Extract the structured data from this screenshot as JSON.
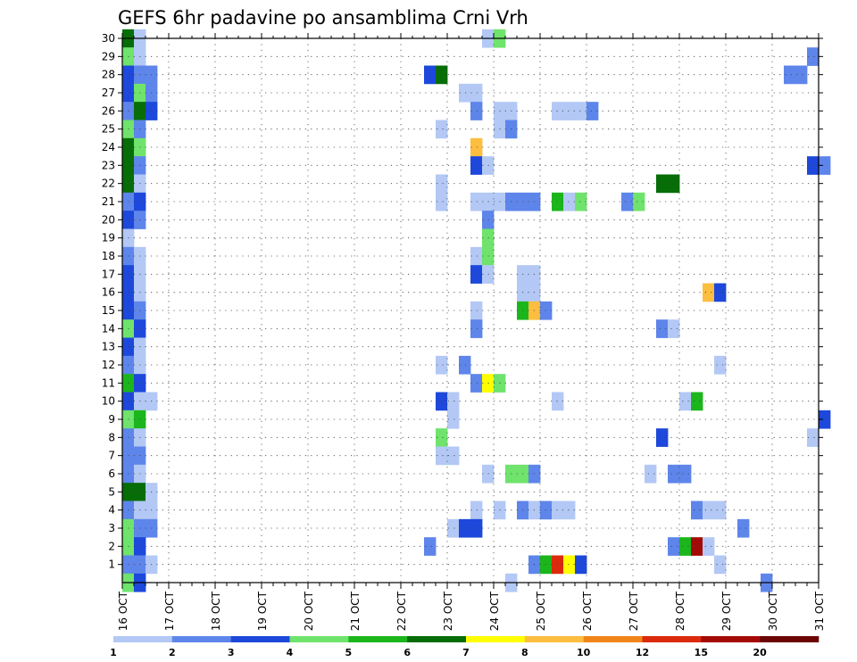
{
  "chart_data": {
    "type": "heatmap",
    "title": "GEFS 6hr padavine po ansamblima Crni Vrh",
    "x_tick_labels": [
      "16 OCT",
      "17 OCT",
      "18 OCT",
      "19 OCT",
      "20 OCT",
      "21 OCT",
      "22 OCT",
      "23 OCT",
      "24 OCT",
      "25 OCT",
      "26 OCT",
      "27 OCT",
      "28 OCT",
      "29 OCT",
      "30 OCT",
      "31 OCT"
    ],
    "y_tick_labels": [
      "1",
      "2",
      "3",
      "4",
      "5",
      "6",
      "7",
      "8",
      "9",
      "10",
      "11",
      "12",
      "13",
      "14",
      "15",
      "16",
      "17",
      "18",
      "19",
      "20",
      "21",
      "22",
      "23",
      "24",
      "25",
      "26",
      "27",
      "28",
      "29",
      "30"
    ],
    "x_range": [
      "16 OCT",
      "31 OCT"
    ],
    "y_range": [
      0,
      30
    ],
    "step_hours": 6,
    "grid": "dotted",
    "colorbar": {
      "placement": "bottom",
      "labels": [
        "1",
        "2",
        "3",
        "4",
        "5",
        "6",
        "7",
        "8",
        "10",
        "12",
        "15",
        "20"
      ],
      "colors": [
        "#b3c8f5",
        "#5e85ea",
        "#1d48db",
        "#6fe36c",
        "#1bb61c",
        "#076d07",
        "#ffff00",
        "#fdbd3e",
        "#f08619",
        "#dc2a0d",
        "#a40a05",
        "#6b0505"
      ]
    },
    "cells": [
      {
        "member": 30,
        "x": 0,
        "w": 1,
        "c": 5
      },
      {
        "member": 30,
        "x": 1,
        "w": 1,
        "c": 0
      },
      {
        "member": 30,
        "x": 31,
        "w": 1,
        "c": 0
      },
      {
        "member": 30,
        "x": 32,
        "w": 1,
        "c": 3
      },
      {
        "member": 29,
        "x": 0,
        "w": 1,
        "c": 3
      },
      {
        "member": 29,
        "x": 1,
        "w": 1,
        "c": 0
      },
      {
        "member": 29,
        "x": 59,
        "w": 1,
        "c": 1
      },
      {
        "member": 28,
        "x": 0,
        "w": 1,
        "c": 2
      },
      {
        "member": 28,
        "x": 1,
        "w": 2,
        "c": 1
      },
      {
        "member": 28,
        "x": 26,
        "w": 1,
        "c": 2
      },
      {
        "member": 28,
        "x": 27,
        "w": 1,
        "c": 5
      },
      {
        "member": 28,
        "x": 57,
        "w": 2,
        "c": 1
      },
      {
        "member": 27,
        "x": 0,
        "w": 1,
        "c": 2
      },
      {
        "member": 27,
        "x": 1,
        "w": 1,
        "c": 3
      },
      {
        "member": 27,
        "x": 2,
        "w": 1,
        "c": 1
      },
      {
        "member": 27,
        "x": 29,
        "w": 2,
        "c": 0
      },
      {
        "member": 26,
        "x": 0,
        "w": 1,
        "c": 1
      },
      {
        "member": 26,
        "x": 1,
        "w": 1,
        "c": 5
      },
      {
        "member": 26,
        "x": 2,
        "w": 1,
        "c": 2
      },
      {
        "member": 26,
        "x": 30,
        "w": 1,
        "c": 1
      },
      {
        "member": 26,
        "x": 32,
        "w": 2,
        "c": 0
      },
      {
        "member": 26,
        "x": 37,
        "w": 3,
        "c": 0
      },
      {
        "member": 26,
        "x": 40,
        "w": 1,
        "c": 1
      },
      {
        "member": 25,
        "x": 0,
        "w": 1,
        "c": 3
      },
      {
        "member": 25,
        "x": 1,
        "w": 1,
        "c": 1
      },
      {
        "member": 25,
        "x": 27,
        "w": 1,
        "c": 0
      },
      {
        "member": 25,
        "x": 32,
        "w": 1,
        "c": 0
      },
      {
        "member": 25,
        "x": 33,
        "w": 1,
        "c": 1
      },
      {
        "member": 24,
        "x": 0,
        "w": 1,
        "c": 5
      },
      {
        "member": 24,
        "x": 1,
        "w": 1,
        "c": 3
      },
      {
        "member": 24,
        "x": 30,
        "w": 1,
        "c": 7
      },
      {
        "member": 23,
        "x": 0,
        "w": 1,
        "c": 5
      },
      {
        "member": 23,
        "x": 1,
        "w": 1,
        "c": 1
      },
      {
        "member": 23,
        "x": 30,
        "w": 1,
        "c": 2
      },
      {
        "member": 23,
        "x": 31,
        "w": 1,
        "c": 0
      },
      {
        "member": 23,
        "x": 59,
        "w": 1,
        "c": 2
      },
      {
        "member": 23,
        "x": 60,
        "w": 1,
        "c": 1
      },
      {
        "member": 22,
        "x": 0,
        "w": 1,
        "c": 5
      },
      {
        "member": 22,
        "x": 1,
        "w": 1,
        "c": 0
      },
      {
        "member": 22,
        "x": 27,
        "w": 1,
        "c": 0
      },
      {
        "member": 22,
        "x": 46,
        "w": 2,
        "c": 5
      },
      {
        "member": 21,
        "x": 0,
        "w": 1,
        "c": 1
      },
      {
        "member": 21,
        "x": 1,
        "w": 1,
        "c": 2
      },
      {
        "member": 21,
        "x": 27,
        "w": 1,
        "c": 0
      },
      {
        "member": 21,
        "x": 30,
        "w": 3,
        "c": 0
      },
      {
        "member": 21,
        "x": 33,
        "w": 3,
        "c": 1
      },
      {
        "member": 21,
        "x": 37,
        "w": 1,
        "c": 4
      },
      {
        "member": 21,
        "x": 38,
        "w": 1,
        "c": 0
      },
      {
        "member": 21,
        "x": 39,
        "w": 1,
        "c": 3
      },
      {
        "member": 21,
        "x": 43,
        "w": 1,
        "c": 1
      },
      {
        "member": 21,
        "x": 44,
        "w": 1,
        "c": 3
      },
      {
        "member": 20,
        "x": 0,
        "w": 1,
        "c": 2
      },
      {
        "member": 20,
        "x": 1,
        "w": 1,
        "c": 1
      },
      {
        "member": 20,
        "x": 31,
        "w": 1,
        "c": 1
      },
      {
        "member": 19,
        "x": 0,
        "w": 1,
        "c": 0
      },
      {
        "member": 19,
        "x": 31,
        "w": 1,
        "c": 3
      },
      {
        "member": 18,
        "x": 0,
        "w": 1,
        "c": 1
      },
      {
        "member": 18,
        "x": 1,
        "w": 1,
        "c": 0
      },
      {
        "member": 18,
        "x": 30,
        "w": 1,
        "c": 0
      },
      {
        "member": 18,
        "x": 31,
        "w": 1,
        "c": 3
      },
      {
        "member": 17,
        "x": 0,
        "w": 1,
        "c": 2
      },
      {
        "member": 17,
        "x": 1,
        "w": 1,
        "c": 0
      },
      {
        "member": 17,
        "x": 30,
        "w": 1,
        "c": 2
      },
      {
        "member": 17,
        "x": 31,
        "w": 1,
        "c": 0
      },
      {
        "member": 17,
        "x": 34,
        "w": 2,
        "c": 0
      },
      {
        "member": 16,
        "x": 0,
        "w": 1,
        "c": 2
      },
      {
        "member": 16,
        "x": 1,
        "w": 1,
        "c": 0
      },
      {
        "member": 16,
        "x": 34,
        "w": 2,
        "c": 0
      },
      {
        "member": 16,
        "x": 50,
        "w": 1,
        "c": 7
      },
      {
        "member": 16,
        "x": 51,
        "w": 1,
        "c": 2
      },
      {
        "member": 15,
        "x": 0,
        "w": 1,
        "c": 2
      },
      {
        "member": 15,
        "x": 1,
        "w": 1,
        "c": 1
      },
      {
        "member": 15,
        "x": 30,
        "w": 1,
        "c": 0
      },
      {
        "member": 15,
        "x": 34,
        "w": 1,
        "c": 4
      },
      {
        "member": 15,
        "x": 35,
        "w": 1,
        "c": 7
      },
      {
        "member": 15,
        "x": 36,
        "w": 1,
        "c": 1
      },
      {
        "member": 14,
        "x": 0,
        "w": 1,
        "c": 3
      },
      {
        "member": 14,
        "x": 1,
        "w": 1,
        "c": 2
      },
      {
        "member": 14,
        "x": 30,
        "w": 1,
        "c": 1
      },
      {
        "member": 14,
        "x": 46,
        "w": 1,
        "c": 1
      },
      {
        "member": 14,
        "x": 47,
        "w": 1,
        "c": 0
      },
      {
        "member": 13,
        "x": 0,
        "w": 1,
        "c": 2
      },
      {
        "member": 13,
        "x": 1,
        "w": 1,
        "c": 0
      },
      {
        "member": 12,
        "x": 0,
        "w": 1,
        "c": 1
      },
      {
        "member": 12,
        "x": 1,
        "w": 1,
        "c": 0
      },
      {
        "member": 12,
        "x": 27,
        "w": 1,
        "c": 0
      },
      {
        "member": 12,
        "x": 29,
        "w": 1,
        "c": 1
      },
      {
        "member": 12,
        "x": 51,
        "w": 1,
        "c": 0
      },
      {
        "member": 11,
        "x": 0,
        "w": 1,
        "c": 4
      },
      {
        "member": 11,
        "x": 1,
        "w": 1,
        "c": 2
      },
      {
        "member": 11,
        "x": 30,
        "w": 1,
        "c": 1
      },
      {
        "member": 11,
        "x": 31,
        "w": 1,
        "c": 6
      },
      {
        "member": 11,
        "x": 32,
        "w": 1,
        "c": 3
      },
      {
        "member": 10,
        "x": 0,
        "w": 1,
        "c": 2
      },
      {
        "member": 10,
        "x": 1,
        "w": 2,
        "c": 0
      },
      {
        "member": 10,
        "x": 27,
        "w": 1,
        "c": 2
      },
      {
        "member": 10,
        "x": 28,
        "w": 1,
        "c": 0
      },
      {
        "member": 10,
        "x": 37,
        "w": 1,
        "c": 0
      },
      {
        "member": 10,
        "x": 48,
        "w": 1,
        "c": 0
      },
      {
        "member": 10,
        "x": 49,
        "w": 1,
        "c": 4
      },
      {
        "member": 9,
        "x": 0,
        "w": 1,
        "c": 3
      },
      {
        "member": 9,
        "x": 1,
        "w": 1,
        "c": 4
      },
      {
        "member": 9,
        "x": 28,
        "w": 1,
        "c": 0
      },
      {
        "member": 9,
        "x": 60,
        "w": 1,
        "c": 2
      },
      {
        "member": 8,
        "x": 0,
        "w": 1,
        "c": 1
      },
      {
        "member": 8,
        "x": 1,
        "w": 1,
        "c": 0
      },
      {
        "member": 8,
        "x": 27,
        "w": 1,
        "c": 3
      },
      {
        "member": 8,
        "x": 46,
        "w": 1,
        "c": 2
      },
      {
        "member": 8,
        "x": 59,
        "w": 1,
        "c": 0
      },
      {
        "member": 7,
        "x": 0,
        "w": 2,
        "c": 1
      },
      {
        "member": 7,
        "x": 27,
        "w": 2,
        "c": 0
      },
      {
        "member": 6,
        "x": 0,
        "w": 1,
        "c": 1
      },
      {
        "member": 6,
        "x": 1,
        "w": 1,
        "c": 0
      },
      {
        "member": 6,
        "x": 31,
        "w": 1,
        "c": 0
      },
      {
        "member": 6,
        "x": 33,
        "w": 2,
        "c": 3
      },
      {
        "member": 6,
        "x": 35,
        "w": 1,
        "c": 1
      },
      {
        "member": 6,
        "x": 45,
        "w": 1,
        "c": 0
      },
      {
        "member": 6,
        "x": 47,
        "w": 2,
        "c": 1
      },
      {
        "member": 5,
        "x": 0,
        "w": 2,
        "c": 5
      },
      {
        "member": 5,
        "x": 2,
        "w": 1,
        "c": 0
      },
      {
        "member": 4,
        "x": 0,
        "w": 1,
        "c": 1
      },
      {
        "member": 4,
        "x": 1,
        "w": 2,
        "c": 0
      },
      {
        "member": 4,
        "x": 30,
        "w": 1,
        "c": 0
      },
      {
        "member": 4,
        "x": 32,
        "w": 1,
        "c": 0
      },
      {
        "member": 4,
        "x": 34,
        "w": 1,
        "c": 1
      },
      {
        "member": 4,
        "x": 35,
        "w": 1,
        "c": 0
      },
      {
        "member": 4,
        "x": 36,
        "w": 1,
        "c": 1
      },
      {
        "member": 4,
        "x": 37,
        "w": 2,
        "c": 0
      },
      {
        "member": 4,
        "x": 49,
        "w": 1,
        "c": 1
      },
      {
        "member": 4,
        "x": 50,
        "w": 2,
        "c": 0
      },
      {
        "member": 3,
        "x": 0,
        "w": 1,
        "c": 3
      },
      {
        "member": 3,
        "x": 1,
        "w": 2,
        "c": 1
      },
      {
        "member": 3,
        "x": 28,
        "w": 1,
        "c": 0
      },
      {
        "member": 3,
        "x": 29,
        "w": 2,
        "c": 2
      },
      {
        "member": 3,
        "x": 53,
        "w": 1,
        "c": 1
      },
      {
        "member": 2,
        "x": 0,
        "w": 1,
        "c": 3
      },
      {
        "member": 2,
        "x": 1,
        "w": 1,
        "c": 2
      },
      {
        "member": 2,
        "x": 26,
        "w": 1,
        "c": 1
      },
      {
        "member": 2,
        "x": 47,
        "w": 1,
        "c": 1
      },
      {
        "member": 2,
        "x": 48,
        "w": 1,
        "c": 4
      },
      {
        "member": 2,
        "x": 49,
        "w": 1,
        "c": 10
      },
      {
        "member": 2,
        "x": 50,
        "w": 1,
        "c": 0
      },
      {
        "member": 1,
        "x": 0,
        "w": 2,
        "c": 1
      },
      {
        "member": 1,
        "x": 2,
        "w": 1,
        "c": 0
      },
      {
        "member": 1,
        "x": 35,
        "w": 1,
        "c": 1
      },
      {
        "member": 1,
        "x": 36,
        "w": 1,
        "c": 4
      },
      {
        "member": 1,
        "x": 37,
        "w": 1,
        "c": 9
      },
      {
        "member": 1,
        "x": 38,
        "w": 1,
        "c": 6
      },
      {
        "member": 1,
        "x": 39,
        "w": 1,
        "c": 2
      },
      {
        "member": 1,
        "x": 51,
        "w": 1,
        "c": 0
      },
      {
        "member": 0,
        "x": 0,
        "w": 1,
        "c": 3
      },
      {
        "member": 0,
        "x": 1,
        "w": 1,
        "c": 2
      },
      {
        "member": 0,
        "x": 33,
        "w": 1,
        "c": 0
      },
      {
        "member": 0,
        "x": 55,
        "w": 1,
        "c": 1
      }
    ]
  }
}
